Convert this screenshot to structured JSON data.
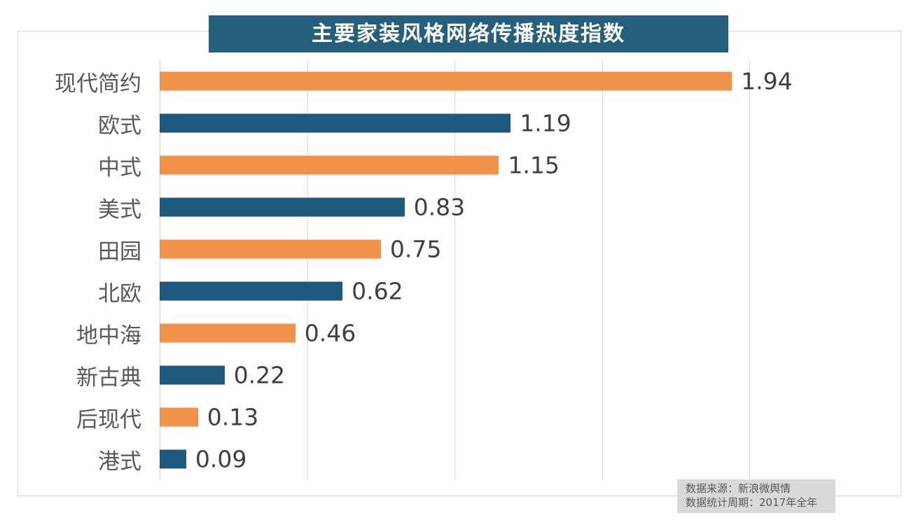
{
  "title": "主要家装风格网络传播热度指数",
  "source_box": {
    "line1": "数据来源：新浪微舆情",
    "line2": "数据统计周期：2017年全年"
  },
  "colors": {
    "title_bg": "#24607c",
    "bar_orange": "#f0914a",
    "bar_teal": "#1e5a7d",
    "grid": "#d9d9d9",
    "label_text": "#595959",
    "value_text": "#3f3f3f",
    "source_bg": "#d9d9d9",
    "source_text": "#595959"
  },
  "chart_data": {
    "type": "bar",
    "orientation": "horizontal",
    "title": "主要家装风格网络传播热度指数",
    "categories": [
      "现代简约",
      "欧式",
      "中式",
      "美式",
      "田园",
      "北欧",
      "地中海",
      "新古典",
      "后现代",
      "港式"
    ],
    "values": [
      1.94,
      1.19,
      1.15,
      0.83,
      0.75,
      0.62,
      0.46,
      0.22,
      0.13,
      0.09
    ],
    "value_labels": [
      "1.94",
      "1.19",
      "1.15",
      "0.83",
      "0.75",
      "0.62",
      "0.46",
      "0.22",
      "0.13",
      "0.09"
    ],
    "xlabel": "",
    "ylabel": "",
    "xlim": [
      0,
      2.5
    ],
    "gridline_interval": 0.5,
    "grid": true,
    "legend": false,
    "bar_color_pattern": [
      "#f0914a",
      "#1e5a7d"
    ],
    "value_label_position": "outside-end",
    "source_lines": [
      "数据来源：新浪微舆情",
      "数据统计周期：2017年全年"
    ]
  }
}
